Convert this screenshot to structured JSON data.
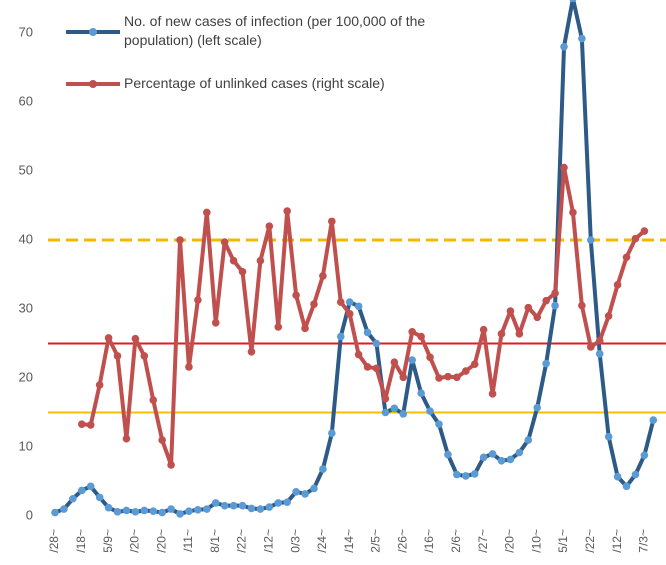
{
  "chart_data": {
    "type": "line",
    "categories": [
      "/28~",
      null,
      null,
      "/18~",
      null,
      null,
      "5/9~",
      null,
      null,
      "/20~",
      null,
      null,
      "/20~",
      null,
      null,
      "/11~",
      null,
      null,
      "8/1~",
      null,
      null,
      "/22~",
      null,
      null,
      "/12~",
      null,
      null,
      "0/3~",
      null,
      null,
      "/24~",
      null,
      null,
      "/14~",
      null,
      null,
      "2/5~",
      null,
      null,
      "/26~",
      null,
      null,
      "/16~",
      null,
      null,
      "2/6~",
      null,
      null,
      "/27~",
      null,
      null,
      "/20~",
      null,
      null,
      "/10~",
      null,
      null,
      "5/1~",
      null,
      null,
      "/22~",
      null,
      null,
      "/12~",
      null,
      null,
      "7/3~",
      null
    ],
    "series": [
      {
        "name": "No. of new cases of infection (per 100,000 of the population) (left scale)",
        "color": "#2e5a87",
        "marker_color": "#5b9bd5",
        "values": [
          0.5,
          1,
          2.5,
          3.7,
          4.3,
          2.7,
          1.2,
          0.6,
          0.8,
          0.6,
          0.8,
          0.7,
          0.5,
          1,
          0.3,
          0.7,
          0.9,
          1,
          1.9,
          1.5,
          1.5,
          1.5,
          1.1,
          1,
          1.3,
          1.9,
          2,
          3.5,
          3.2,
          4,
          6.8,
          12,
          26,
          31,
          30.4,
          26.6,
          25,
          15,
          15.6,
          14.8,
          22.6,
          17.8,
          15.2,
          13.3,
          8.9,
          6,
          5.8,
          6.1,
          8.5,
          9,
          8,
          8.2,
          9.2,
          11,
          15.7,
          22.1,
          30.5,
          68,
          75,
          69.2,
          40,
          23.5,
          11.5,
          5.7,
          4.3,
          6,
          8.8,
          13.9
        ]
      },
      {
        "name": "Percentage of unlinked cases (right scale)",
        "color": "#c0504d",
        "marker_color": "#c0504d",
        "values": [
          null,
          null,
          null,
          13.3,
          13.2,
          19,
          25.8,
          23.2,
          11.2,
          25.7,
          23.2,
          16.8,
          11,
          7.4,
          40,
          21.6,
          31.3,
          44,
          28,
          39.7,
          37,
          35.4,
          23.8,
          37,
          42,
          27.4,
          44.2,
          32,
          27.2,
          30.7,
          34.8,
          42.7,
          31,
          29.3,
          23.4,
          21.6,
          21.4,
          17,
          22.3,
          20.1,
          26.7,
          26,
          23,
          20,
          20.2,
          20.1,
          21,
          22,
          27,
          17.7,
          26.4,
          29.7,
          26.4,
          30.2,
          28.8,
          31.2,
          32.3,
          50.5,
          44,
          30.5,
          24.5,
          25.4,
          29,
          33.5,
          37.5,
          40.2,
          41.3,
          null
        ]
      }
    ],
    "reference_lines": [
      {
        "value": 40,
        "color": "#f5b800",
        "dashed": true
      },
      {
        "value": 25,
        "color": "#e31a1c",
        "dashed": false
      },
      {
        "value": 15,
        "color": "#f5c000",
        "dashed": false
      }
    ],
    "ylim": [
      0,
      75
    ],
    "yticks": [
      0,
      10,
      20,
      30,
      40,
      50,
      60,
      70
    ]
  }
}
